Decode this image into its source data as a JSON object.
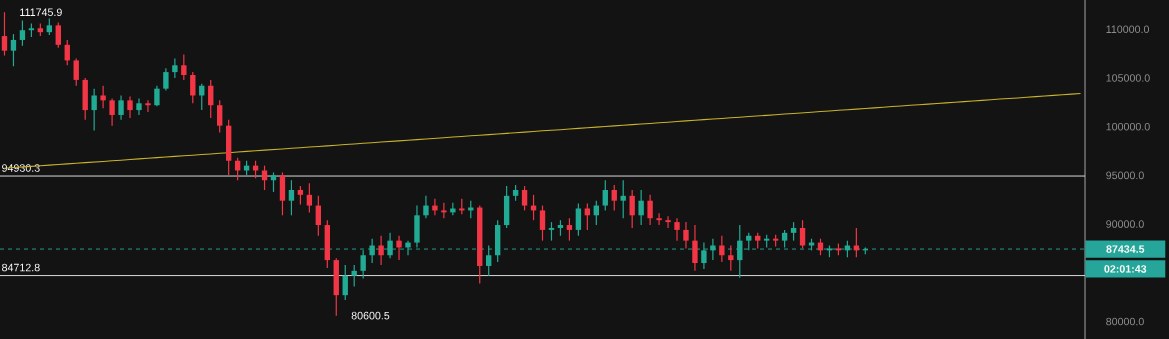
{
  "chart_data": {
    "type": "candlestick",
    "categories": [
      null,
      null,
      null,
      null,
      null,
      null,
      null,
      null,
      null,
      null,
      null,
      null,
      null,
      null,
      null,
      null,
      null,
      null,
      null,
      null,
      null,
      null,
      null,
      null,
      null,
      null,
      null,
      null,
      null,
      null,
      null,
      null,
      null,
      null,
      null,
      null,
      null,
      null,
      null,
      null,
      null,
      null,
      null,
      null,
      null,
      null,
      null,
      null,
      null,
      null,
      null,
      null,
      null,
      null,
      null,
      null,
      null,
      null,
      null,
      null,
      null,
      null,
      null,
      null,
      null,
      null,
      null,
      null,
      null,
      null,
      null,
      null,
      null,
      null,
      null,
      null,
      null,
      null,
      null,
      null,
      null,
      null,
      null,
      null,
      null,
      null,
      null,
      null,
      null,
      null,
      null,
      null,
      null,
      null,
      null,
      null,
      null,
      null,
      null,
      null,
      null,
      null,
      null,
      null,
      null,
      null,
      null,
      null,
      null,
      null,
      null,
      null,
      null,
      null,
      null,
      null,
      null,
      null,
      null,
      null,
      null
    ],
    "ohlc": [
      [
        109300,
        111745.9,
        107300,
        107800
      ],
      [
        107800,
        109500,
        106200,
        108900
      ],
      [
        108900,
        110900,
        108300,
        109900
      ],
      [
        109900,
        110600,
        109200,
        110100
      ],
      [
        110100,
        110600,
        109300,
        109700
      ],
      [
        109700,
        111100,
        109400,
        110400
      ],
      [
        110400,
        110700,
        108100,
        108400
      ],
      [
        108400,
        108900,
        106300,
        106800
      ],
      [
        106800,
        107000,
        104200,
        104800
      ],
      [
        104800,
        105000,
        100700,
        101700
      ],
      [
        101700,
        103900,
        99600,
        103200
      ],
      [
        103200,
        104200,
        101900,
        102700
      ],
      [
        102700,
        102900,
        100100,
        101200
      ],
      [
        101200,
        103200,
        100700,
        102700
      ],
      [
        102700,
        103100,
        100900,
        101700
      ],
      [
        101700,
        102900,
        101200,
        102400
      ],
      [
        102400,
        102700,
        101500,
        102200
      ],
      [
        102200,
        104200,
        102100,
        103900
      ],
      [
        103900,
        106000,
        103700,
        105600
      ],
      [
        105600,
        107000,
        105000,
        106300
      ],
      [
        106300,
        107400,
        104800,
        105300
      ],
      [
        105300,
        105600,
        102400,
        103200
      ],
      [
        103200,
        104400,
        101700,
        104200
      ],
      [
        104200,
        104800,
        100900,
        102200
      ],
      [
        102200,
        102700,
        99400,
        100100
      ],
      [
        100100,
        100700,
        95000,
        96500
      ],
      [
        96500,
        96800,
        94500,
        95500
      ],
      [
        95500,
        96500,
        95000,
        96000
      ],
      [
        96000,
        96500,
        94700,
        95500
      ],
      [
        95500,
        96000,
        93500,
        94500
      ],
      [
        94500,
        95300,
        93300,
        95000
      ],
      [
        95000,
        95300,
        90900,
        92400
      ],
      [
        92400,
        94500,
        90900,
        93500
      ],
      [
        93500,
        93900,
        92000,
        93000
      ],
      [
        93000,
        94200,
        91200,
        91900
      ],
      [
        91900,
        92900,
        88800,
        89900
      ],
      [
        89900,
        90400,
        85500,
        86300
      ],
      [
        86300,
        86500,
        80600.5,
        82700
      ],
      [
        82700,
        85800,
        82200,
        84700
      ],
      [
        84700,
        85800,
        83600,
        85200
      ],
      [
        85200,
        87300,
        84400,
        86800
      ],
      [
        86800,
        88500,
        86000,
        87800
      ],
      [
        87800,
        88800,
        85800,
        86800
      ],
      [
        86800,
        89100,
        86500,
        88300
      ],
      [
        88300,
        88800,
        86300,
        87600
      ],
      [
        87600,
        88300,
        86800,
        88100
      ],
      [
        88100,
        91900,
        87600,
        90900
      ],
      [
        90900,
        92900,
        90600,
        91900
      ],
      [
        91900,
        92600,
        90900,
        91400
      ],
      [
        91400,
        92200,
        90600,
        91200
      ],
      [
        91200,
        92200,
        90900,
        91600
      ],
      [
        91600,
        92600,
        91000,
        91400
      ],
      [
        91400,
        92400,
        90600,
        91700
      ],
      [
        91700,
        91900,
        83900,
        85700
      ],
      [
        85700,
        87800,
        84700,
        86800
      ],
      [
        86800,
        90400,
        86100,
        89900
      ],
      [
        89900,
        93900,
        89600,
        92900
      ],
      [
        92900,
        94000,
        92400,
        93500
      ],
      [
        93500,
        93900,
        91400,
        91900
      ],
      [
        91900,
        93000,
        90400,
        91400
      ],
      [
        91400,
        91900,
        88300,
        89400
      ],
      [
        89400,
        90200,
        88300,
        89600
      ],
      [
        89600,
        90400,
        88800,
        89900
      ],
      [
        89900,
        90600,
        88300,
        89400
      ],
      [
        89400,
        92100,
        88800,
        91600
      ],
      [
        91600,
        92100,
        89400,
        90900
      ],
      [
        90900,
        92400,
        89900,
        91900
      ],
      [
        91900,
        94500,
        91400,
        93500
      ],
      [
        93500,
        94000,
        91400,
        92400
      ],
      [
        92400,
        94500,
        90600,
        92900
      ],
      [
        92900,
        93500,
        89600,
        90900
      ],
      [
        90900,
        93500,
        89900,
        92400
      ],
      [
        92400,
        93000,
        89900,
        90600
      ],
      [
        90600,
        91100,
        89900,
        90400
      ],
      [
        90400,
        90800,
        89600,
        90200
      ],
      [
        90200,
        90600,
        88300,
        89400
      ],
      [
        89400,
        90200,
        87500,
        88300
      ],
      [
        88300,
        89900,
        85200,
        86000
      ],
      [
        86000,
        88100,
        85400,
        87300
      ],
      [
        87300,
        88500,
        86300,
        87800
      ],
      [
        87800,
        88800,
        86100,
        86800
      ],
      [
        86800,
        87800,
        85200,
        86300
      ],
      [
        86300,
        89900,
        84500,
        88300
      ],
      [
        88300,
        89100,
        87300,
        88800
      ],
      [
        88800,
        89100,
        87500,
        88300
      ],
      [
        88300,
        88900,
        87600,
        88500
      ],
      [
        88500,
        88900,
        87700,
        88300
      ],
      [
        88300,
        89400,
        87600,
        89100
      ],
      [
        89100,
        90200,
        88300,
        89600
      ],
      [
        89600,
        90400,
        87500,
        87800
      ],
      [
        87800,
        88500,
        87300,
        88100
      ],
      [
        88100,
        88500,
        86800,
        87300
      ],
      [
        87300,
        87800,
        86600,
        87500
      ],
      [
        87500,
        88000,
        86800,
        87300
      ],
      [
        87300,
        88300,
        86600,
        87800
      ],
      [
        87800,
        89600,
        86600,
        87300
      ],
      [
        87300,
        87600,
        86900,
        87434.5
      ],
      null,
      null,
      null,
      null,
      null,
      null,
      null,
      null,
      null,
      null,
      null,
      null,
      null,
      null,
      null,
      null,
      null,
      null,
      null,
      null,
      null,
      null,
      null,
      null
    ],
    "series": [
      {
        "type": "line",
        "color": "#c9b22c",
        "values": [
          95730,
          95800,
          95860,
          95920,
          95990,
          96050,
          96120,
          96180,
          96240,
          96310,
          96370,
          96430,
          96500,
          96560,
          96630,
          96690,
          96750,
          96820,
          96880,
          96950,
          97010,
          97070,
          97140,
          97200,
          97270,
          97330,
          97390,
          97460,
          97520,
          97590,
          97650,
          97710,
          97780,
          97840,
          97910,
          97970,
          98030,
          98100,
          98160,
          98220,
          98290,
          98350,
          98420,
          98480,
          98540,
          98610,
          98670,
          98740,
          98800,
          98860,
          98930,
          98990,
          99060,
          99120,
          99180,
          99250,
          99310,
          99370,
          99440,
          99500,
          99570,
          99630,
          99690,
          99760,
          99820,
          99890,
          99950,
          100010,
          100080,
          100140,
          100210,
          100270,
          100330,
          100400,
          100460,
          100530,
          100590,
          100650,
          100720,
          100780,
          100840,
          100910,
          100970,
          101040,
          101100,
          101160,
          101230,
          101290,
          101360,
          101420,
          101480,
          101550,
          101610,
          101680,
          101740,
          101800,
          101870,
          101930,
          101990,
          102060,
          102120,
          102190,
          102250,
          102310,
          102380,
          102440,
          102510,
          102570,
          102630,
          102700,
          102760,
          102830,
          102890,
          102950,
          103020,
          103080,
          103140,
          103210,
          103270,
          103340,
          103400
        ]
      }
    ],
    "ylim": [
      78200,
      113000
    ],
    "yticks": [
      {
        "value": 80000,
        "label": "80000.0"
      },
      {
        "value": 90000,
        "label": "90000.0"
      },
      {
        "value": 95000,
        "label": "95000.0"
      },
      {
        "value": 100000,
        "label": "100000.0"
      },
      {
        "value": 105000,
        "label": "105000.0"
      },
      {
        "value": 110000,
        "label": "110000.0"
      }
    ],
    "tick_labels": "y",
    "ref_lines": [
      {
        "axis": "y",
        "value": 94930.3,
        "label": "94930.3",
        "color": "#e8e8e8",
        "line_style": "solid"
      },
      {
        "axis": "y",
        "value": 84712.8,
        "label": "84712.8",
        "color": "#e8e8e8",
        "line_style": "solid"
      },
      {
        "axis": "y",
        "value": 87434.5,
        "label": "87434.5",
        "color": "#26a69a",
        "line_style": "dashed"
      }
    ],
    "annotations": [
      "111745.9",
      "80600.5",
      "02:01:43"
    ]
  }
}
